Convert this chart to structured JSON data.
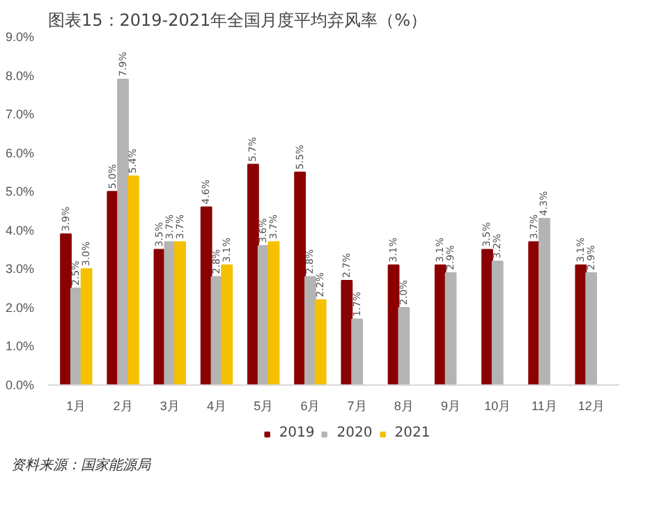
{
  "chart_data": {
    "type": "bar",
    "title": "图表15：2019-2021年全国月度平均弃风率（%）",
    "categories": [
      "1月",
      "2月",
      "3月",
      "4月",
      "5月",
      "6月",
      "7月",
      "8月",
      "9月",
      "10月",
      "11月",
      "12月"
    ],
    "series": [
      {
        "name": "2019",
        "color": "#8b0000",
        "values": [
          3.9,
          5.0,
          3.5,
          4.6,
          5.7,
          5.5,
          2.7,
          3.1,
          3.1,
          3.5,
          3.7,
          3.1
        ],
        "value_labels": [
          "3.9%",
          "5.0%",
          "3.5%",
          "4.6%",
          "5.7%",
          "5.5%",
          "2.7%",
          "3.1%",
          "3.1%",
          "3.5%",
          "3.7%",
          "3.1%"
        ]
      },
      {
        "name": "2020",
        "color": "#b4b4b4",
        "values": [
          2.5,
          7.9,
          3.7,
          2.8,
          3.6,
          2.8,
          1.7,
          2.0,
          2.9,
          3.2,
          4.3,
          2.9
        ],
        "value_labels": [
          "2.5%",
          "7.9%",
          "3.7%",
          "2.8%",
          "3.6%",
          "2.8%",
          "1.7%",
          "2.0%",
          "2.9%",
          "3.2%",
          "4.3%",
          "2.9%"
        ]
      },
      {
        "name": "2021",
        "color": "#f5c000",
        "values": [
          3.0,
          5.4,
          3.7,
          3.1,
          3.7,
          2.2,
          null,
          null,
          null,
          null,
          null,
          null
        ],
        "value_labels": [
          "3.0%",
          "5.4%",
          "3.7%",
          "3.1%",
          "3.7%",
          "2.2%",
          null,
          null,
          null,
          null,
          null,
          null
        ]
      }
    ],
    "ylim": [
      0,
      9
    ],
    "yticks": [
      {
        "value": 0,
        "label": "0.0%"
      },
      {
        "value": 1,
        "label": "1.0%"
      },
      {
        "value": 2,
        "label": "2.0%"
      },
      {
        "value": 3,
        "label": "3.0%"
      },
      {
        "value": 4,
        "label": "4.0%"
      },
      {
        "value": 5,
        "label": "5.0%"
      },
      {
        "value": 6,
        "label": "6.0%"
      },
      {
        "value": 7,
        "label": "7.0%"
      },
      {
        "value": 8,
        "label": "8.0%"
      },
      {
        "value": 9,
        "label": "9.0%"
      }
    ],
    "grid": false,
    "legend": "bottom",
    "annotations": [
      "资料来源：国家能源局"
    ]
  }
}
